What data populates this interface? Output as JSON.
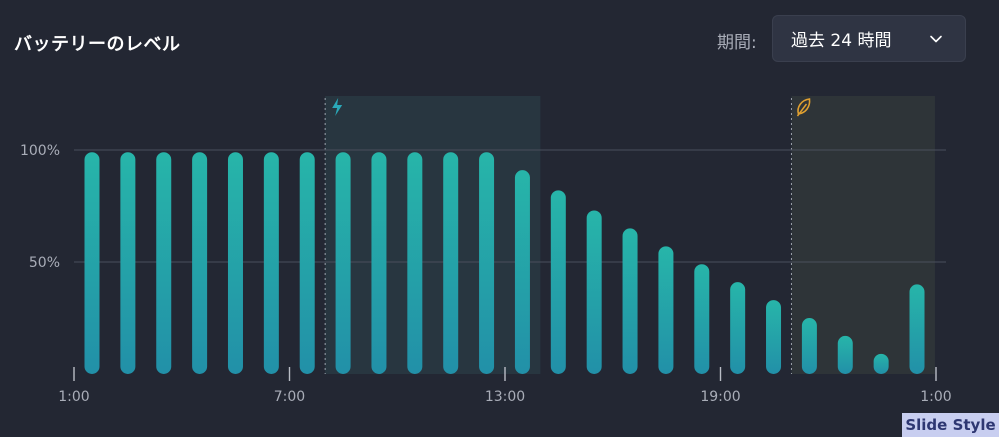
{
  "title": "バッテリーのレベル",
  "period": {
    "label": "期間:",
    "selected": "過去 24 時間"
  },
  "icons": {
    "dropdown": "chevron-down-icon",
    "charging": "lightning-icon",
    "saver": "leaf-icon"
  },
  "colors": {
    "background": "#232733",
    "bar_top": "#26b3a8",
    "bar_bottom": "#2290a8",
    "charging_accent": "#2aa9b9",
    "saver_accent": "#e0a030"
  },
  "watermark": "Slide Style",
  "chart_data": {
    "type": "bar",
    "y_ticks": [
      "100%",
      "50%"
    ],
    "x_ticks": [
      "1:00",
      "7:00",
      "13:00",
      "19:00",
      "1:00"
    ],
    "values": [
      99,
      99,
      99,
      99,
      99,
      99,
      99,
      99,
      99,
      99,
      99,
      99,
      91,
      82,
      73,
      65,
      57,
      49,
      41,
      33,
      25,
      17,
      9,
      40
    ],
    "ylim": [
      0,
      100
    ],
    "regions": [
      {
        "name": "charging",
        "start_index": 7,
        "end_index": 12,
        "icon": "lightning-icon"
      },
      {
        "name": "battery-saver",
        "start_index": 20,
        "end_index": 23,
        "icon": "leaf-icon"
      }
    ],
    "grid": true
  }
}
